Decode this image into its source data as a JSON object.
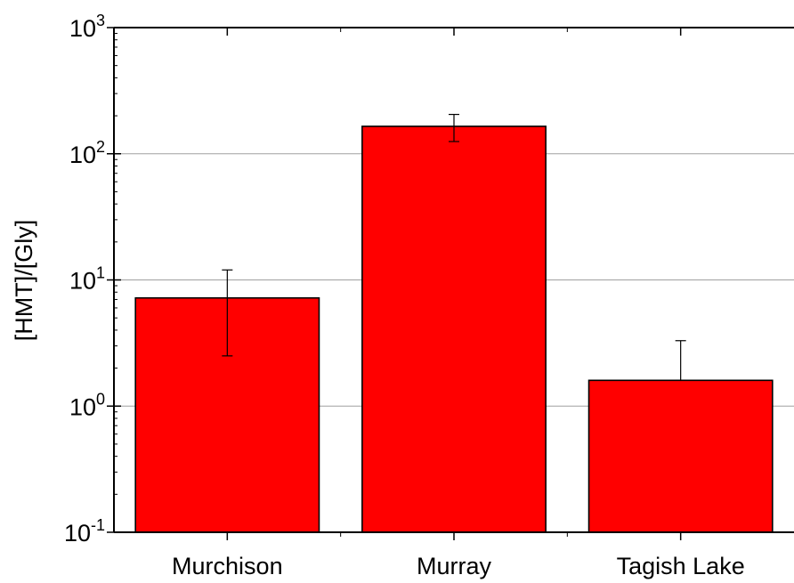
{
  "chart_data": {
    "type": "bar",
    "categories": [
      "Murchison",
      "Murray",
      "Tagish Lake"
    ],
    "values": [
      7.2,
      165,
      1.6
    ],
    "error_bars": [
      {
        "upper": 12,
        "lower": 2.5
      },
      {
        "upper": 205,
        "lower": 125
      },
      {
        "upper": 3.3,
        "lower": 1.6
      }
    ],
    "title": "",
    "xlabel": "",
    "ylabel": "[HMT]/[Gly]",
    "yscale": "log",
    "ylim": [
      0.1,
      1000
    ],
    "y_ticks": [
      {
        "base": "10",
        "exp": "-1"
      },
      {
        "base": "10",
        "exp": "0"
      },
      {
        "base": "10",
        "exp": "1"
      },
      {
        "base": "10",
        "exp": "2"
      },
      {
        "base": "10",
        "exp": "3"
      }
    ],
    "grid": "horizontal major",
    "colors": {
      "bar": "#ff0000",
      "bar_edge": "#000000",
      "grid": "#a0a0a0",
      "axis": "#000000"
    }
  }
}
